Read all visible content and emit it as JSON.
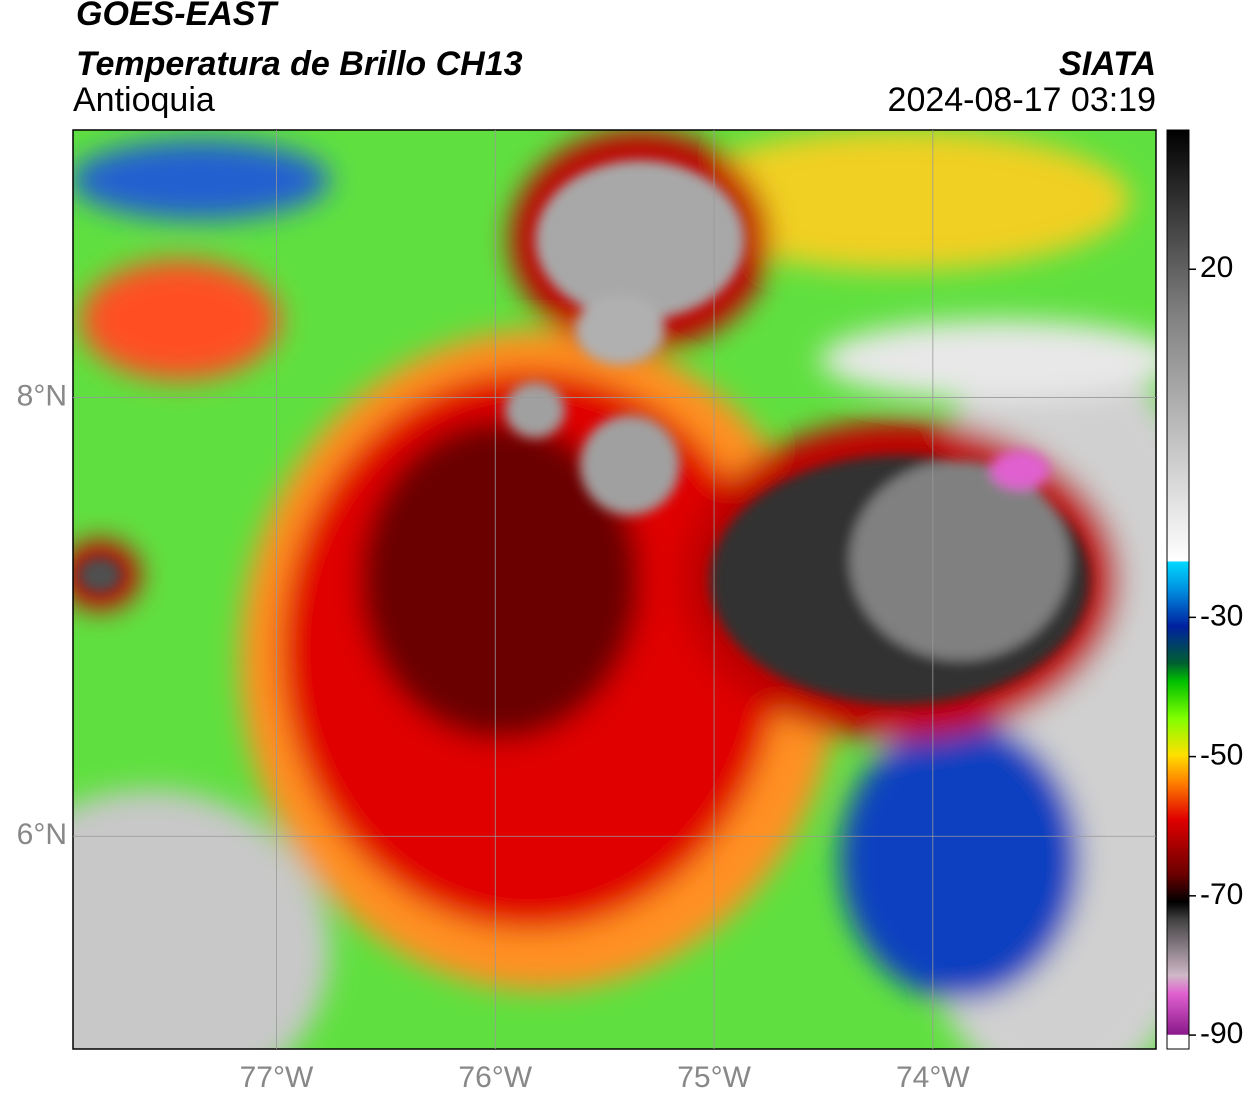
{
  "map": {
    "title": "GOES-EAST",
    "subtitle": "Temperatura de Brillo CH13",
    "region": "Antioquia",
    "source": "SIATA",
    "timestamp": "2024-08-17 03:19",
    "xlim": [
      -77.93,
      -72.98
    ],
    "ylim": [
      5.03,
      9.22
    ],
    "xticks": [
      {
        "value": -77,
        "label": "77°W"
      },
      {
        "value": -76,
        "label": "76°W"
      },
      {
        "value": -75,
        "label": "75°W"
      },
      {
        "value": -74,
        "label": "74°W"
      }
    ],
    "yticks": [
      {
        "value": 8,
        "label": "8°N"
      },
      {
        "value": 6,
        "label": "6°N"
      }
    ],
    "grid": true,
    "colorbar": {
      "clim": [
        -92,
        40
      ],
      "ticks": [
        20,
        -30,
        -50,
        -70,
        -90
      ]
    }
  }
}
